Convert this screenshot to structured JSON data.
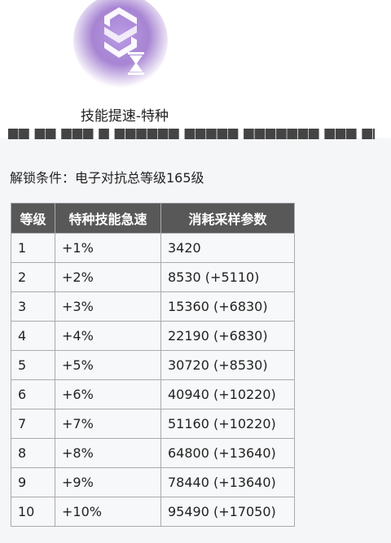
{
  "skill": {
    "title": "技能提速-特种",
    "icon": "skill-speed-hourglass-icon",
    "accent": "#8a5cc4"
  },
  "unlock_condition": "解锁条件：电子对抗总等级165级",
  "table": {
    "headers": [
      "等级",
      "特种技能急速",
      "消耗采样参数"
    ],
    "rows": [
      [
        "1",
        "+1%",
        "3420"
      ],
      [
        "2",
        "+2%",
        "8530 (+5110)"
      ],
      [
        "3",
        "+3%",
        "15360 (+6830)"
      ],
      [
        "4",
        "+4%",
        "22190 (+6830)"
      ],
      [
        "5",
        "+5%",
        "30720 (+8530)"
      ],
      [
        "6",
        "+6%",
        "40940 (+10220)"
      ],
      [
        "7",
        "+7%",
        "51160 (+10220)"
      ],
      [
        "8",
        "+8%",
        "64800 (+13640)"
      ],
      [
        "9",
        "+9%",
        "78440 (+13640)"
      ],
      [
        "10",
        "+10%",
        "95490 (+17050)"
      ]
    ]
  },
  "colors": {
    "header_bg": "#585858",
    "cell_bg": "#f7f8fa",
    "border": "#a9a9b0",
    "panel_bg": "#f5f6f8"
  }
}
